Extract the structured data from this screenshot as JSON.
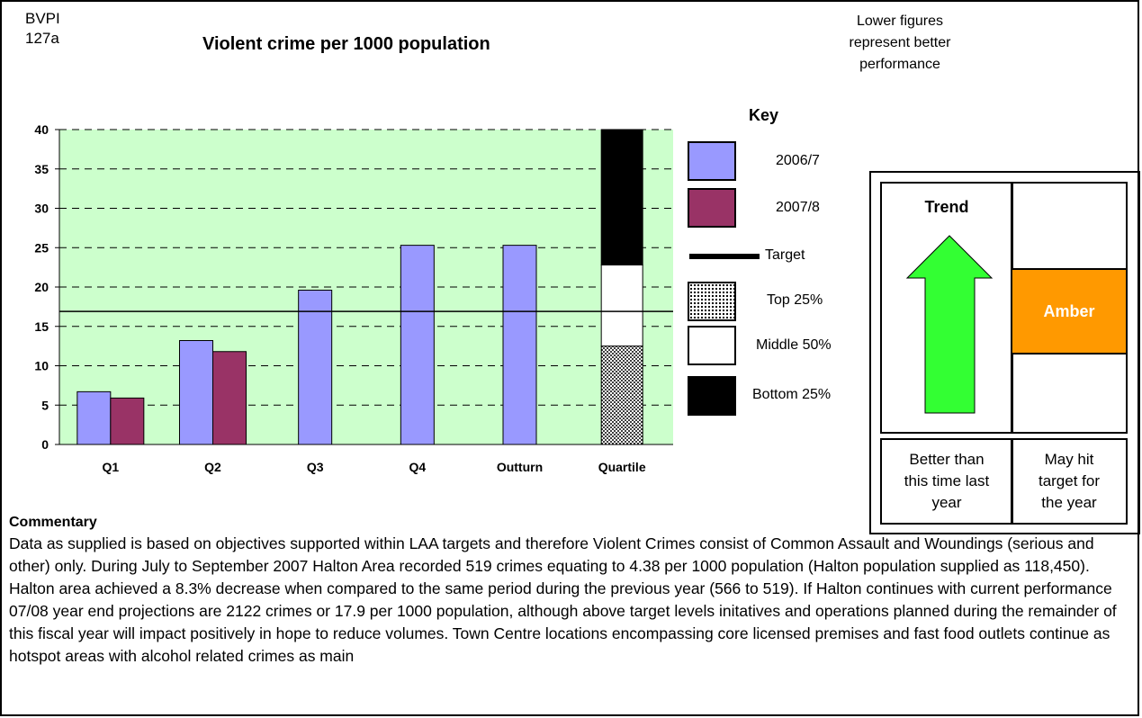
{
  "header": {
    "bvpi_line1": "BVPI",
    "bvpi_line2": "127a",
    "title": "Violent crime per 1000 population",
    "note_line1": "Lower figures",
    "note_line2": "represent better",
    "note_line3": "performance"
  },
  "chart_data": {
    "type": "bar",
    "categories": [
      "Q1",
      "Q2",
      "Q3",
      "Q4",
      "Outturn",
      "Quartile"
    ],
    "series": [
      {
        "name": "2006/7",
        "values": [
          6.7,
          13.2,
          19.6,
          25.3,
          25.3,
          null
        ],
        "color": "#9999ff"
      },
      {
        "name": "2007/8",
        "values": [
          5.9,
          11.8,
          null,
          null,
          null,
          null
        ],
        "color": "#993366"
      }
    ],
    "target": {
      "name": "Target",
      "value": 16.9
    },
    "quartile": {
      "top_25_upper": 12.5,
      "middle_50_upper": 22.8,
      "bottom_25_upper": 40
    },
    "ylim": [
      0,
      40
    ],
    "yticks": [
      0,
      5,
      10,
      15,
      20,
      25,
      30,
      35,
      40
    ],
    "plot_background": "#ccffcc",
    "grid": true,
    "legend": "right"
  },
  "key": {
    "title": "Key",
    "items": [
      "2006/7",
      "2007/8",
      "Target",
      "Top 25%",
      "Middle 50%",
      "Bottom 25%"
    ]
  },
  "panel": {
    "trend_title": "Trend",
    "trend_direction": "up",
    "trend_color": "#33ff33",
    "traffic_light": "Amber",
    "traffic_color": "#ff9900",
    "trend_caption": [
      "Better than",
      "this time last",
      "year"
    ],
    "target_caption": [
      "May hit",
      "target for",
      "the year"
    ]
  },
  "commentary": {
    "title": "Commentary",
    "text": "Data as supplied is based on objectives supported within LAA targets and therefore Violent Crimes consist of Common Assault and Woundings (serious and other) only. During July to September 2007 Halton Area recorded 519 crimes equating to 4.38 per 1000 population (Halton population supplied as 118,450). Halton area achieved a 8.3% decrease when compared to the same period during the previous year (566 to 519). If Halton continues with current performance 07/08 year end projections are 2122 crimes or 17.9 per 1000 population, although above target levels initatives and operations planned during the remainder of this fiscal year will impact positively in hope to reduce volumes. Town Centre locations encompassing core licensed premises and fast food outlets continue as hotspot areas with alcohol related crimes as main"
  }
}
